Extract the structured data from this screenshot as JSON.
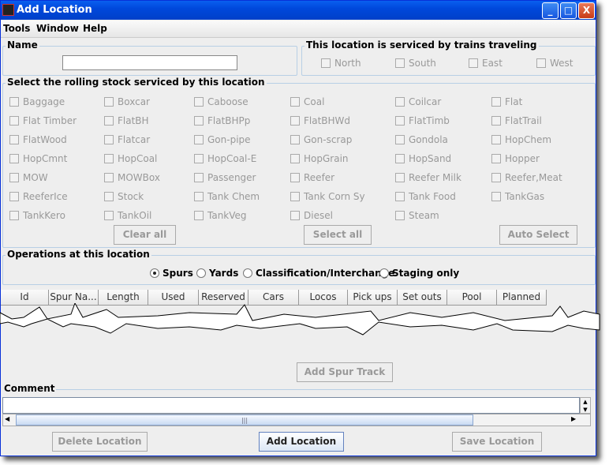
{
  "window": {
    "title": "Add Location",
    "minimize": "_",
    "maximize": "□",
    "close": "X"
  },
  "menu": [
    "Tools",
    "Window",
    "Help"
  ],
  "name_panel": {
    "legend": "Name",
    "value": ""
  },
  "directions": {
    "legend": "This location is serviced by trains traveling",
    "items": [
      "North",
      "South",
      "East",
      "West"
    ]
  },
  "rolling_stock": {
    "legend": "Select the rolling stock serviced by this location",
    "rows": [
      [
        "Baggage",
        "Boxcar",
        "Caboose",
        "Coal",
        "Coilcar",
        "Flat"
      ],
      [
        "Flat Timber",
        "FlatBH",
        "FlatBHPp",
        "FlatBHWd",
        "FlatTimb",
        "FlatTrail"
      ],
      [
        "FlatWood",
        "Flatcar",
        "Gon-pipe",
        "Gon-scrap",
        "Gondola",
        "HopChem"
      ],
      [
        "HopCmnt",
        "HopCoal",
        "HopCoal-E",
        "HopGrain",
        "HopSand",
        "Hopper"
      ],
      [
        "MOW",
        "MOWBox",
        "Passenger",
        "Reefer",
        "Reefer Milk",
        "Reefer,Meat"
      ],
      [
        "ReeferIce",
        "Stock",
        "Tank Chem",
        "Tank Corn Sy",
        "Tank Food",
        "TankGas"
      ],
      [
        "TankKero",
        "TankOil",
        "TankVeg",
        "Diesel",
        "Steam"
      ]
    ],
    "clear_all": "Clear all",
    "select_all": "Select all",
    "auto_select": "Auto Select"
  },
  "operations": {
    "legend": "Operations at this location",
    "options": [
      "Spurs",
      "Yards",
      "Classification/Interchange",
      "Staging only"
    ],
    "selected": "Spurs"
  },
  "table": {
    "columns": [
      "Id",
      "Spur Na...",
      "Length",
      "Used",
      "Reserved",
      "Cars",
      "Locos",
      "Pick ups",
      "Set outs",
      "Pool",
      "Planned"
    ]
  },
  "add_spur_track": "Add Spur Track",
  "comment": {
    "legend": "Comment",
    "value": ""
  },
  "buttons": {
    "delete": "Delete Location",
    "add": "Add Location",
    "save": "Save Location"
  }
}
